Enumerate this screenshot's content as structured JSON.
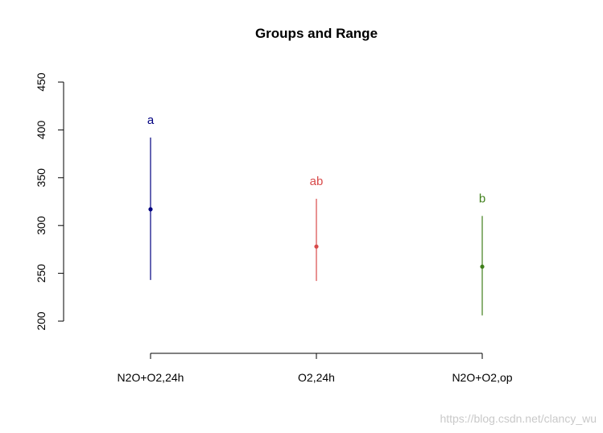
{
  "chart_data": {
    "type": "errorbar",
    "title": "Groups and Range",
    "xlabel": "",
    "ylabel": "",
    "ylim": [
      165,
      450
    ],
    "y_ticks": [
      200,
      250,
      300,
      350,
      400,
      450
    ],
    "categories": [
      "N2O+O2,24h",
      "O2,24h",
      "N2O+O2,op"
    ],
    "points": [
      {
        "category": "N2O+O2,24h",
        "mean": 317,
        "low": 243,
        "high": 392,
        "group": "a",
        "color": "#000080"
      },
      {
        "category": "O2,24h",
        "mean": 278,
        "low": 242,
        "high": 328,
        "group": "ab",
        "color": "#d84a4a"
      },
      {
        "category": "N2O+O2,op",
        "mean": 257,
        "low": 206,
        "high": 310,
        "group": "b",
        "color": "#3f7f1a"
      }
    ],
    "grid": false,
    "legend": "none"
  },
  "watermark": "https://blog.csdn.net/clancy_wu"
}
